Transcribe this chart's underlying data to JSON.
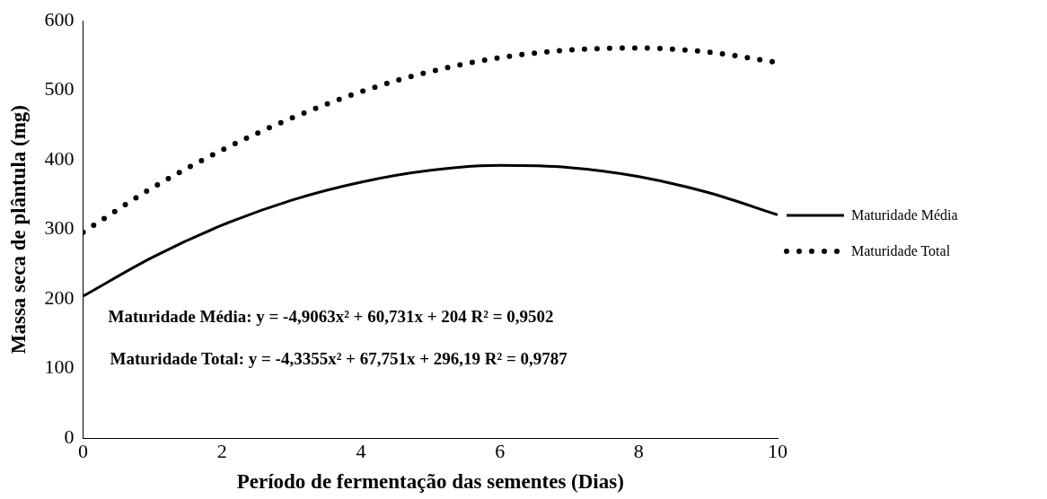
{
  "chart_data": {
    "type": "line",
    "xlabel": "Período de fermentação das sementes (Dias)",
    "ylabel": "Massa seca de plântula (mg)",
    "x": [
      0,
      1,
      2,
      3,
      4,
      5,
      6,
      7,
      8,
      9,
      10
    ],
    "series": [
      {
        "name": "Maturidade Média",
        "color": "#000000",
        "line_style": "solid",
        "values": [
          204,
          260,
          306,
          342,
          368,
          385,
          392,
          389,
          376,
          353,
          321
        ]
      },
      {
        "name": "Maturidade Total",
        "color": "#000000",
        "line_style": "dotted",
        "values": [
          296,
          360,
          414,
          460,
          498,
          527,
          547,
          558,
          561,
          555,
          540
        ]
      }
    ],
    "xlim": [
      0,
      10
    ],
    "xticks": [
      0,
      2,
      4,
      6,
      8,
      10
    ],
    "ylim": [
      0,
      600
    ],
    "yticks": [
      0,
      100,
      200,
      300,
      400,
      500,
      600
    ],
    "grid": false,
    "legend": "right",
    "marker": "none",
    "annotations": [
      "Maturidade Média: y = -4,9063x² + 60,731x + 204 R² = 0,9502",
      "Maturidade Total: y = -4,3355x² + 67,751x + 296,19 R² = 0,9787"
    ]
  }
}
